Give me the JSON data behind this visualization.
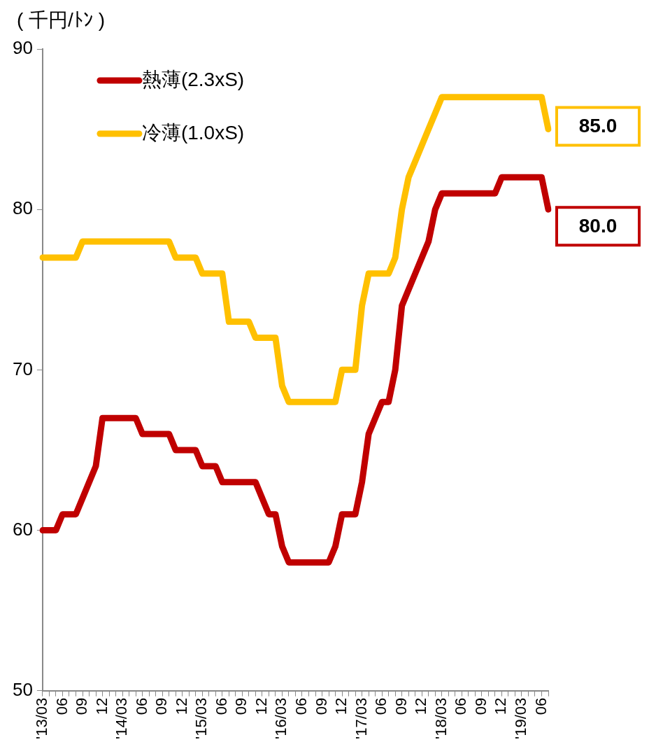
{
  "chart_data": {
    "type": "line",
    "ylabel": "( 千円/ﾄﾝ )",
    "categories": [
      "'13/03",
      null,
      null,
      "06",
      null,
      null,
      "09",
      null,
      null,
      "12",
      null,
      null,
      "'14/03",
      null,
      null,
      "06",
      null,
      null,
      "09",
      null,
      null,
      "12",
      null,
      null,
      "'15/03",
      null,
      null,
      "06",
      null,
      null,
      "09",
      null,
      null,
      "12",
      null,
      null,
      "'16/03",
      null,
      null,
      "06",
      null,
      null,
      "09",
      null,
      null,
      "12",
      null,
      null,
      "'17/03",
      null,
      null,
      "06",
      null,
      null,
      "09",
      null,
      null,
      "12",
      null,
      null,
      "'18/03",
      null,
      null,
      "06",
      null,
      null,
      "09",
      null,
      null,
      "12",
      null,
      null,
      "'19/03",
      null,
      null,
      "06",
      null
    ],
    "series": [
      {
        "name": "熱薄(2.3xS)",
        "color": "#c00000",
        "values": [
          60,
          60,
          60,
          61,
          61,
          61,
          62,
          63,
          64,
          67,
          67,
          67,
          67,
          67,
          67,
          66,
          66,
          66,
          66,
          66,
          65,
          65,
          65,
          65,
          64,
          64,
          64,
          63,
          63,
          63,
          63,
          63,
          63,
          62,
          61,
          61,
          59,
          58,
          58,
          58,
          58,
          58,
          58,
          58,
          59,
          61,
          61,
          61,
          63,
          66,
          67,
          68,
          68,
          70,
          74,
          75,
          76,
          77,
          78,
          80,
          81,
          81,
          81,
          81,
          81,
          81,
          81,
          81,
          81,
          82,
          82,
          82,
          82,
          82,
          82,
          82,
          80
        ],
        "value_labels": [
          null,
          null,
          null,
          null,
          null,
          null,
          null,
          null,
          null,
          null,
          null,
          null,
          null,
          null,
          null,
          null,
          null,
          null,
          null,
          null,
          null,
          null,
          null,
          null,
          null,
          null,
          null,
          null,
          null,
          null,
          null,
          null,
          null,
          null,
          null,
          null,
          null,
          null,
          null,
          null,
          null,
          null,
          null,
          null,
          null,
          null,
          null,
          null,
          null,
          null,
          null,
          null,
          null,
          null,
          null,
          null,
          null,
          null,
          null,
          null,
          null,
          null,
          null,
          null,
          null,
          null,
          null,
          null,
          null,
          null,
          null,
          null,
          null,
          null,
          null,
          null,
          "80.0"
        ]
      },
      {
        "name": "冷薄(1.0xS)",
        "color": "#ffc000",
        "values": [
          77,
          77,
          77,
          77,
          77,
          77,
          78,
          78,
          78,
          78,
          78,
          78,
          78,
          78,
          78,
          78,
          78,
          78,
          78,
          78,
          77,
          77,
          77,
          77,
          76,
          76,
          76,
          76,
          73,
          73,
          73,
          73,
          72,
          72,
          72,
          72,
          69,
          68,
          68,
          68,
          68,
          68,
          68,
          68,
          68,
          70,
          70,
          70,
          74,
          76,
          76,
          76,
          76,
          77,
          80,
          82,
          83,
          84,
          85,
          86,
          87,
          87,
          87,
          87,
          87,
          87,
          87,
          87,
          87,
          87,
          87,
          87,
          87,
          87,
          87,
          87,
          85
        ],
        "value_labels": [
          null,
          null,
          null,
          null,
          null,
          null,
          null,
          null,
          null,
          null,
          null,
          null,
          null,
          null,
          null,
          null,
          null,
          null,
          null,
          null,
          null,
          null,
          null,
          null,
          null,
          null,
          null,
          null,
          null,
          null,
          null,
          null,
          null,
          null,
          null,
          null,
          null,
          null,
          null,
          null,
          null,
          null,
          null,
          null,
          null,
          null,
          null,
          null,
          null,
          null,
          null,
          null,
          null,
          null,
          null,
          null,
          null,
          null,
          null,
          null,
          null,
          null,
          null,
          null,
          null,
          null,
          null,
          null,
          null,
          null,
          null,
          null,
          null,
          null,
          null,
          null,
          "85.0"
        ]
      }
    ],
    "ylim": [
      50,
      90
    ],
    "yticks": [
      50,
      60,
      70,
      80,
      90
    ],
    "grid": false,
    "legend": "top left",
    "marker": "none",
    "line_style": "solid"
  }
}
